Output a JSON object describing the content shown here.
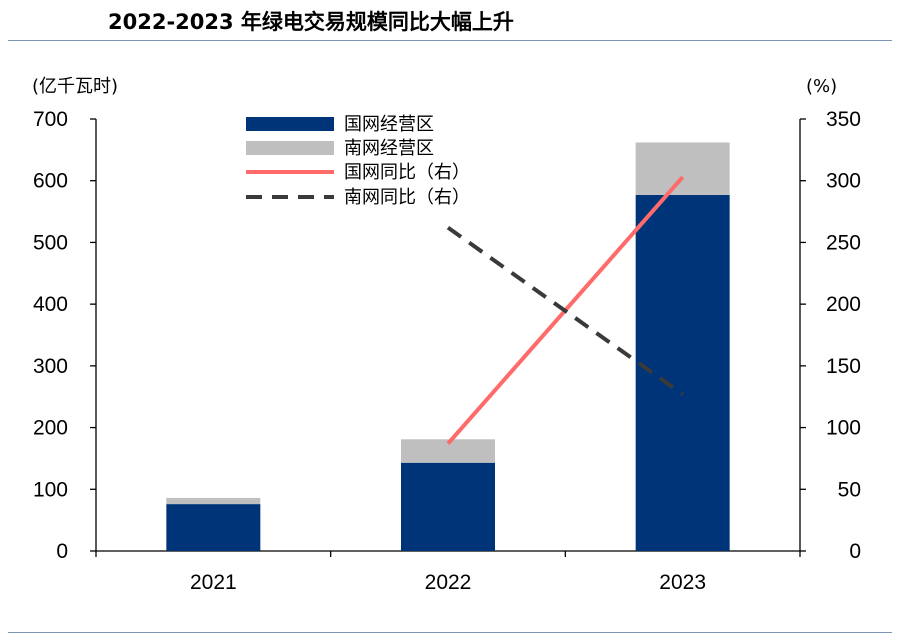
{
  "chart_data": {
    "type": "bar",
    "title": "2022-2023 年绿电交易规模同比大幅上升",
    "categories": [
      "2021",
      "2022",
      "2023"
    ],
    "stacked": true,
    "y_left": {
      "unit": "(亿千瓦时)",
      "lim": [
        0,
        700
      ],
      "ticks": [
        "0",
        "100",
        "200",
        "300",
        "400",
        "500",
        "600",
        "700"
      ]
    },
    "y_right": {
      "unit": "(%)",
      "lim": [
        0,
        350
      ],
      "ticks": [
        "0",
        "50",
        "100",
        "150",
        "200",
        "250",
        "300",
        "350"
      ]
    },
    "series": [
      {
        "name": "国网经营区",
        "kind": "bar",
        "axis": "left",
        "color": "#003478",
        "values": [
          76,
          143,
          577
        ]
      },
      {
        "name": "南网经营区",
        "kind": "bar",
        "axis": "left",
        "color": "#bfbfbf",
        "values": [
          10,
          38,
          85
        ]
      },
      {
        "name": "国网同比（右）",
        "kind": "line",
        "axis": "right",
        "color": "#ff6b6b",
        "dash": "solid",
        "values": [
          null,
          87,
          303
        ]
      },
      {
        "name": "南网同比（右）",
        "kind": "line",
        "axis": "right",
        "color": "#3a3a3a",
        "dash": "dashed",
        "values": [
          null,
          262,
          127
        ]
      }
    ],
    "legend_position": "top-left",
    "grid": false
  }
}
